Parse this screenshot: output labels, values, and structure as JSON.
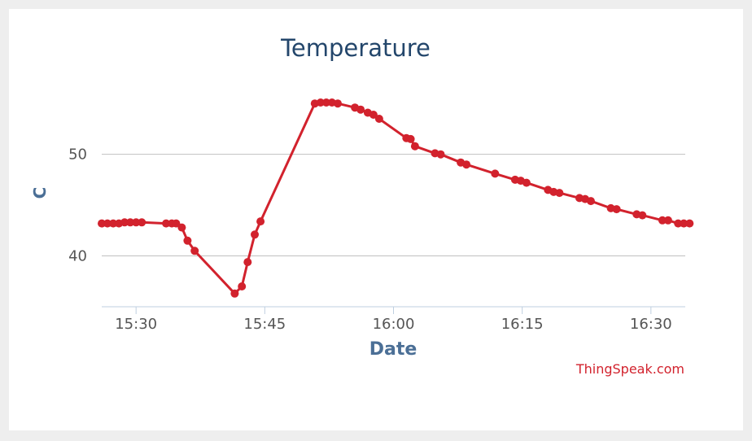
{
  "chart_data": {
    "type": "line",
    "title": "Temperature",
    "xlabel": "Date",
    "ylabel": "C",
    "credit": "ThingSpeak.com",
    "line_color": "#d2222d",
    "grid_color": "#c0c0c0",
    "axis_color": "#bfcfe0",
    "y_grid": true,
    "x_range": [
      "15:26",
      "16:34"
    ],
    "ylim": [
      35,
      56.3
    ],
    "x_ticks": [
      "15:30",
      "15:45",
      "16:00",
      "16:15",
      "16:30"
    ],
    "y_ticks": [
      40,
      50
    ],
    "series": [
      {
        "points": [
          {
            "x": "15:26:00",
            "y": 43.2
          },
          {
            "x": "15:26:40",
            "y": 43.2
          },
          {
            "x": "15:27:20",
            "y": 43.2
          },
          {
            "x": "15:28:00",
            "y": 43.2
          },
          {
            "x": "15:28:40",
            "y": 43.3
          },
          {
            "x": "15:29:20",
            "y": 43.3
          },
          {
            "x": "15:30:00",
            "y": 43.3
          },
          {
            "x": "15:30:40",
            "y": 43.3
          },
          {
            "x": "15:33:30",
            "y": 43.2
          },
          {
            "x": "15:34:10",
            "y": 43.2
          },
          {
            "x": "15:34:40",
            "y": 43.2
          },
          {
            "x": "15:35:20",
            "y": 42.8
          },
          {
            "x": "15:36:00",
            "y": 41.5
          },
          {
            "x": "15:36:50",
            "y": 40.5
          },
          {
            "x": "15:41:30",
            "y": 36.3
          },
          {
            "x": "15:42:20",
            "y": 37.0
          },
          {
            "x": "15:43:00",
            "y": 39.4
          },
          {
            "x": "15:43:50",
            "y": 42.1
          },
          {
            "x": "15:44:30",
            "y": 43.4
          },
          {
            "x": "15:50:50",
            "y": 55.0
          },
          {
            "x": "15:51:30",
            "y": 55.1
          },
          {
            "x": "15:52:10",
            "y": 55.1
          },
          {
            "x": "15:52:50",
            "y": 55.1
          },
          {
            "x": "15:53:30",
            "y": 55.0
          },
          {
            "x": "15:55:30",
            "y": 54.6
          },
          {
            "x": "15:56:10",
            "y": 54.4
          },
          {
            "x": "15:57:00",
            "y": 54.1
          },
          {
            "x": "15:57:40",
            "y": 53.9
          },
          {
            "x": "15:58:20",
            "y": 53.5
          },
          {
            "x": "16:01:30",
            "y": 51.6
          },
          {
            "x": "16:02:00",
            "y": 51.5
          },
          {
            "x": "16:02:30",
            "y": 50.8
          },
          {
            "x": "16:04:50",
            "y": 50.1
          },
          {
            "x": "16:05:30",
            "y": 50.0
          },
          {
            "x": "16:07:50",
            "y": 49.2
          },
          {
            "x": "16:08:30",
            "y": 49.0
          },
          {
            "x": "16:11:50",
            "y": 48.1
          },
          {
            "x": "16:14:10",
            "y": 47.5
          },
          {
            "x": "16:14:50",
            "y": 47.4
          },
          {
            "x": "16:15:30",
            "y": 47.2
          },
          {
            "x": "16:18:00",
            "y": 46.5
          },
          {
            "x": "16:18:40",
            "y": 46.3
          },
          {
            "x": "16:19:20",
            "y": 46.2
          },
          {
            "x": "16:21:40",
            "y": 45.7
          },
          {
            "x": "16:22:20",
            "y": 45.6
          },
          {
            "x": "16:23:00",
            "y": 45.4
          },
          {
            "x": "16:25:20",
            "y": 44.7
          },
          {
            "x": "16:26:00",
            "y": 44.6
          },
          {
            "x": "16:28:20",
            "y": 44.1
          },
          {
            "x": "16:29:00",
            "y": 44.0
          },
          {
            "x": "16:31:20",
            "y": 43.5
          },
          {
            "x": "16:32:00",
            "y": 43.5
          },
          {
            "x": "16:33:10",
            "y": 43.2
          },
          {
            "x": "16:33:50",
            "y": 43.2
          },
          {
            "x": "16:34:30",
            "y": 43.2
          }
        ]
      }
    ]
  }
}
